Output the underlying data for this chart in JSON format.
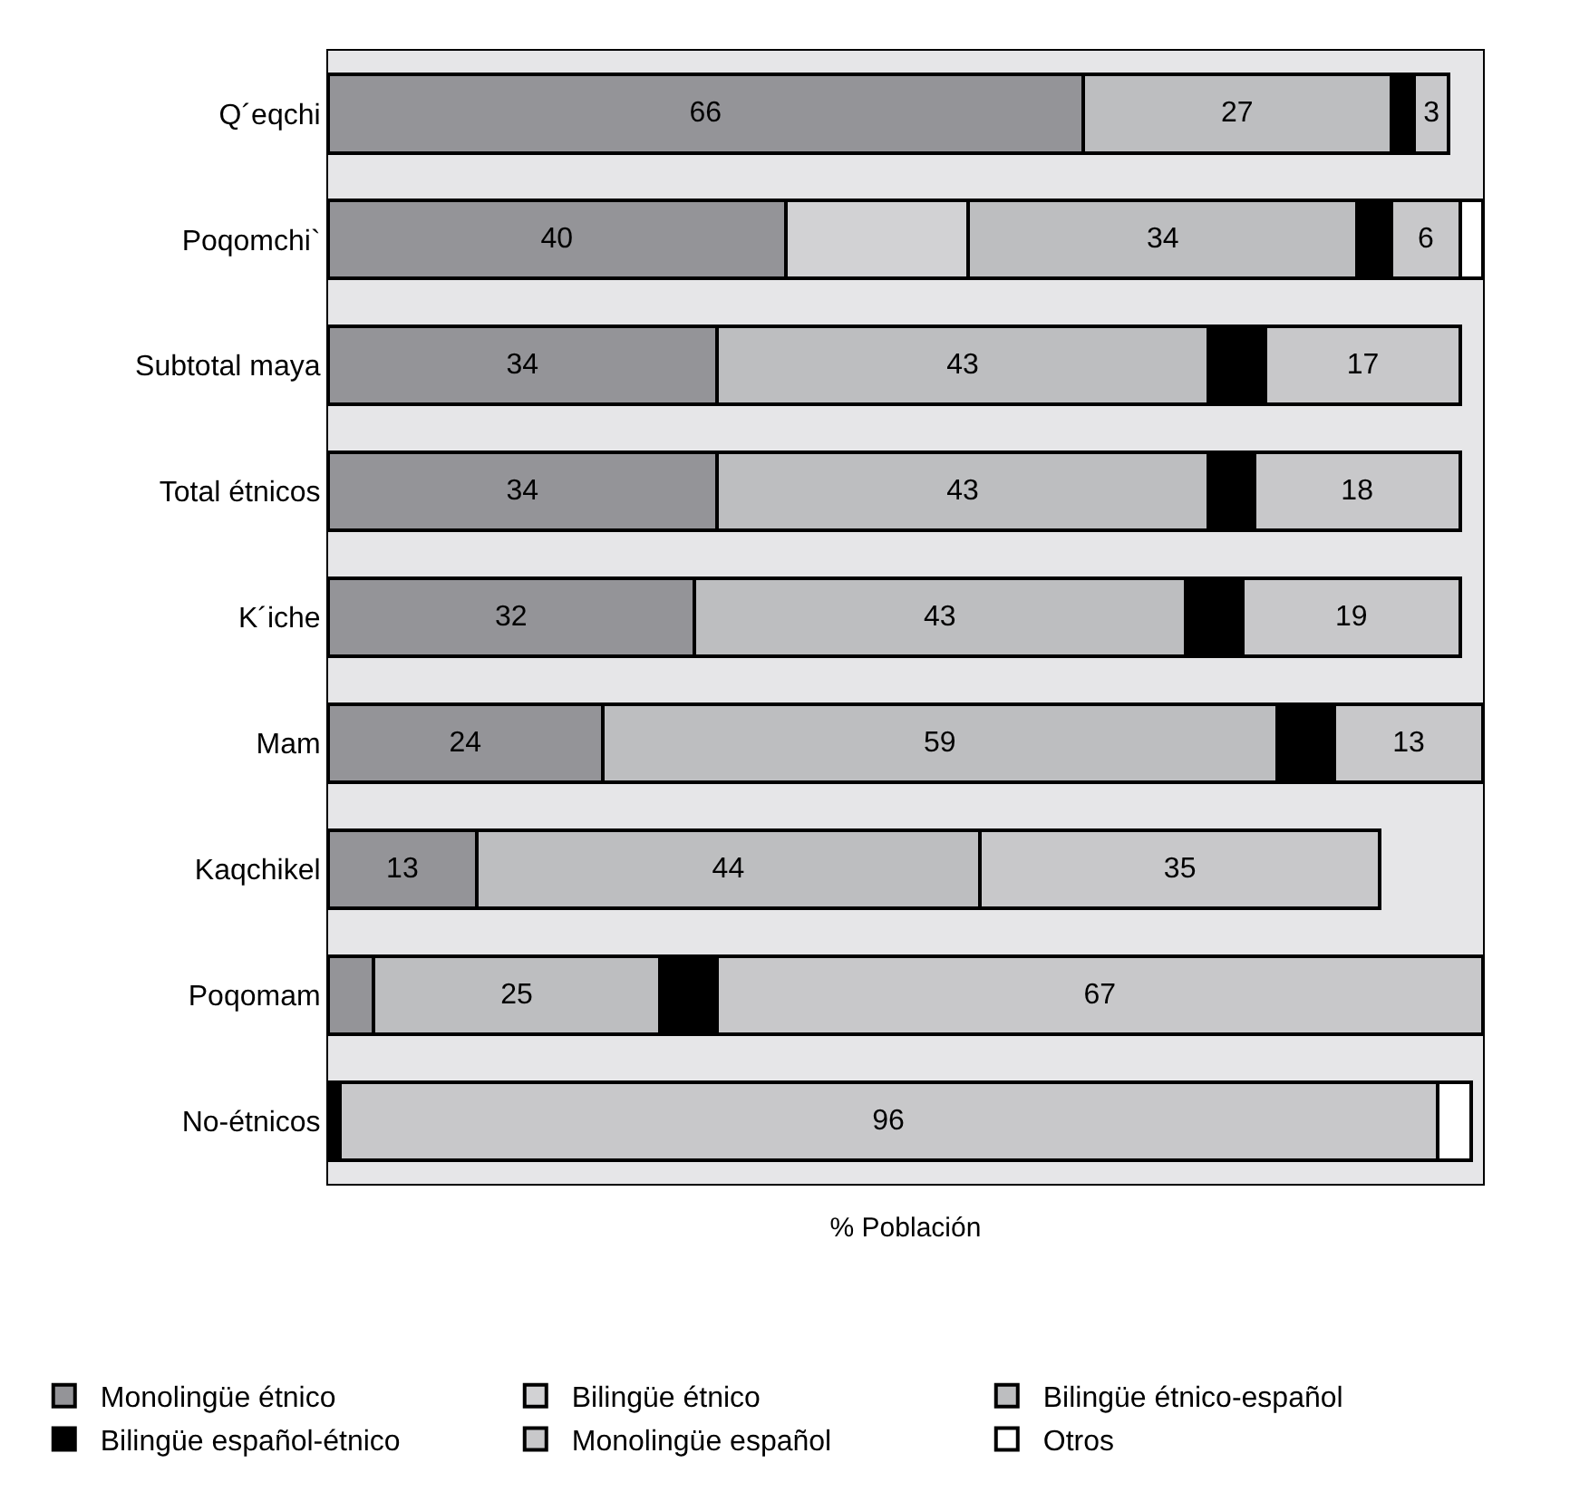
{
  "chart_data": {
    "type": "bar",
    "orientation": "horizontal",
    "stacked": true,
    "xlabel": "% Población",
    "legend": "bottom",
    "grid": false,
    "categories": [
      "Q´eqchi",
      "Poqomchi`",
      "Subtotal maya",
      "Total étnicos",
      "K´iche",
      "Mam",
      "Kaqchikel",
      "Poqomam",
      "No-étnicos"
    ],
    "series": [
      {
        "name": "Monolingüe étnico",
        "color": "#949498",
        "values": [
          66,
          40,
          34,
          34,
          32,
          24,
          13,
          4,
          null
        ],
        "value_labels": [
          "66",
          "40",
          "34",
          "34",
          "32",
          "24",
          "13",
          null,
          null
        ]
      },
      {
        "name": "Bilingüe étnico",
        "color": "#d2d2d4",
        "values": [
          null,
          16,
          null,
          null,
          null,
          null,
          null,
          null,
          null
        ],
        "value_labels": [
          null,
          null,
          null,
          null,
          null,
          null,
          null,
          null,
          null
        ]
      },
      {
        "name": "Bilingüe étnico-español",
        "color": "#bdbec0",
        "values": [
          27,
          34,
          43,
          43,
          43,
          59,
          44,
          25,
          null
        ],
        "value_labels": [
          "27",
          "34",
          "43",
          "43",
          "43",
          "59",
          "44",
          "25",
          null
        ]
      },
      {
        "name": "Bilingüe español-étnico",
        "color": "#000000",
        "values": [
          2,
          3,
          5,
          4,
          5,
          5,
          null,
          5,
          1
        ],
        "value_labels": [
          null,
          null,
          null,
          null,
          null,
          null,
          null,
          null,
          null
        ]
      },
      {
        "name": "Monolingüe español",
        "color": "#c8c8ca",
        "values": [
          3,
          6,
          17,
          18,
          19,
          13,
          35,
          67,
          96
        ],
        "value_labels": [
          "3",
          "6",
          "17",
          "18",
          "19",
          "13",
          "35",
          "67",
          "96"
        ]
      },
      {
        "name": "Otros",
        "color": "#ffffff",
        "values": [
          null,
          2,
          null,
          null,
          null,
          null,
          null,
          null,
          3
        ],
        "value_labels": [
          null,
          null,
          null,
          null,
          null,
          null,
          null,
          null,
          null
        ]
      }
    ]
  }
}
